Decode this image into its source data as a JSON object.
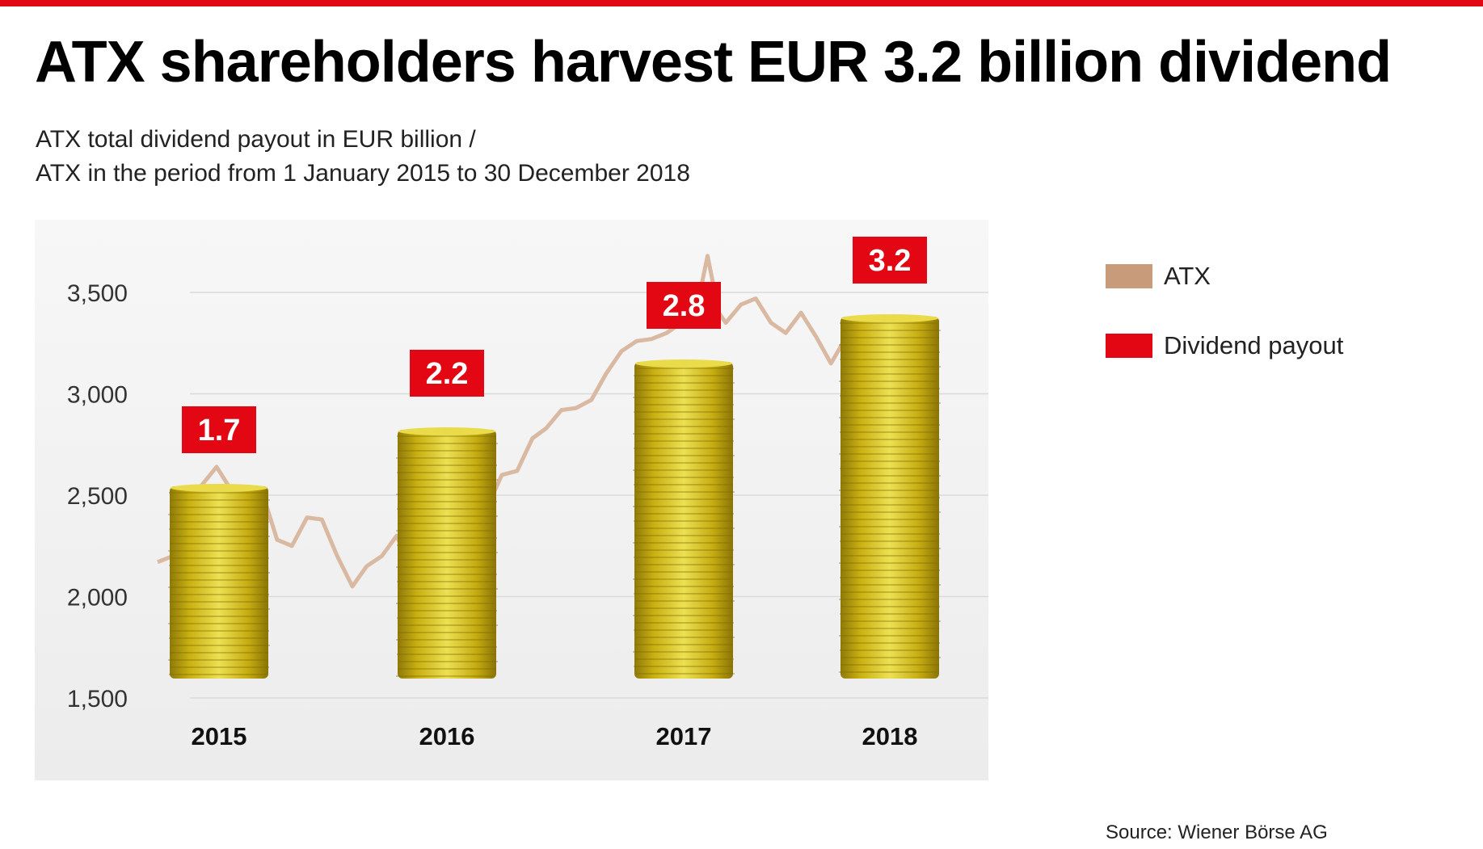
{
  "title": "ATX shareholders harvest EUR 3.2 billion dividend",
  "subtitle_lines": [
    "ATX total dividend payout in EUR billion /",
    "ATX in the period from 1 January 2015 to 30 December 2018"
  ],
  "legend": [
    {
      "label": "ATX",
      "color": "#c89b7b"
    },
    {
      "label": "Dividend payout",
      "color": "#e30613"
    }
  ],
  "source": "Source: Wiener Börse AG",
  "colors": {
    "accent": "#e30613",
    "atx_line": "#d9b9a1",
    "coin_gold": "#d8c018",
    "panel_bg": "#efefef"
  },
  "chart_data": {
    "type": "bar",
    "title": "ATX shareholders harvest EUR 3.2 billion dividend",
    "categories": [
      "2015",
      "2016",
      "2017",
      "2018"
    ],
    "series": [
      {
        "name": "Dividend payout",
        "values": [
          1.7,
          2.2,
          2.8,
          3.2
        ],
        "data_labels": [
          "1.7",
          "2.2",
          "2.8",
          "3.2"
        ],
        "marker": "coin-stack"
      },
      {
        "name": "ATX",
        "type": "line",
        "x": [
          "2015-01-01",
          "2015-02-01",
          "2015-03-01",
          "2015-04-01",
          "2015-05-01",
          "2015-06-01",
          "2015-07-01",
          "2015-08-01",
          "2015-09-01",
          "2015-10-01",
          "2015-11-01",
          "2015-12-01",
          "2016-01-01",
          "2016-02-01",
          "2016-03-01",
          "2016-04-01",
          "2016-05-01",
          "2016-06-01",
          "2016-07-01",
          "2016-08-01",
          "2016-09-01",
          "2016-10-01",
          "2016-11-01",
          "2016-12-01",
          "2017-01-01",
          "2017-02-01",
          "2017-03-01",
          "2017-04-01",
          "2017-05-01",
          "2017-06-01",
          "2017-07-01",
          "2017-08-01",
          "2017-09-01",
          "2017-10-01",
          "2017-11-01",
          "2017-12-01",
          "2018-01-01",
          "2018-01-23",
          "2018-02-15",
          "2018-03-01",
          "2018-04-01",
          "2018-05-01",
          "2018-06-01",
          "2018-07-01",
          "2018-08-01",
          "2018-09-01",
          "2018-10-01",
          "2018-11-01",
          "2018-12-01",
          "2018-12-30"
        ],
        "y": [
          2170,
          2200,
          2380,
          2550,
          2640,
          2520,
          2460,
          2520,
          2280,
          2250,
          2390,
          2380,
          2200,
          2050,
          2150,
          2200,
          2300,
          2120,
          2150,
          2200,
          2400,
          2450,
          2440,
          2600,
          2620,
          2780,
          2830,
          2920,
          2930,
          2970,
          3100,
          3210,
          3260,
          3270,
          3300,
          3350,
          3420,
          3680,
          3400,
          3350,
          3440,
          3470,
          3350,
          3300,
          3400,
          3280,
          3150,
          3280,
          3200,
          3220
        ]
      }
    ],
    "x_tick_labels": [
      "2015",
      "2016",
      "2017",
      "2018"
    ],
    "y_axis": {
      "ylim": [
        1500,
        3500
      ],
      "ticks": [
        1500,
        2000,
        2500,
        3000,
        3500
      ],
      "tick_labels": [
        "1,500",
        "2,000",
        "2,500",
        "3,000",
        "3,500"
      ],
      "grid": true
    },
    "legend_position": "right"
  }
}
